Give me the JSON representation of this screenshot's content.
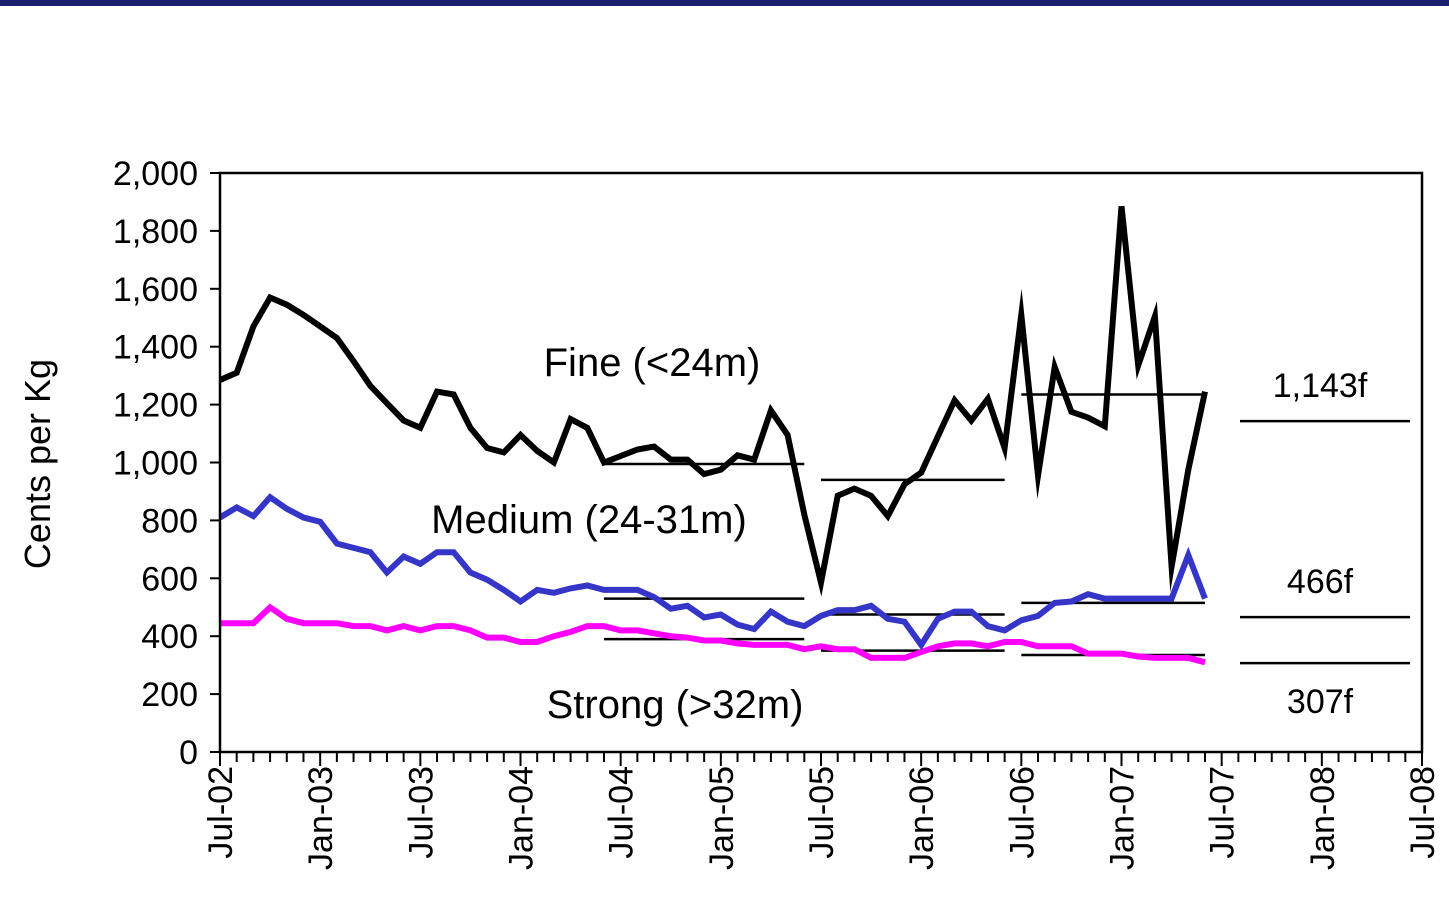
{
  "chart_data": {
    "type": "line",
    "ylabel": "Cents per Kg",
    "ylim": [
      0,
      2000
    ],
    "yticks": [
      "0",
      "200",
      "400",
      "600",
      "800",
      "1,000",
      "1,200",
      "1,400",
      "1,600",
      "1,800",
      "2,000"
    ],
    "ytick_values": [
      0,
      200,
      400,
      600,
      800,
      1000,
      1200,
      1400,
      1600,
      1800,
      2000
    ],
    "xlim": [
      "2002-07",
      "2008-07"
    ],
    "xticks": [
      "Jul-02",
      "Jan-03",
      "Jul-03",
      "Jan-04",
      "Jul-04",
      "Jan-05",
      "Jul-05",
      "Jan-06",
      "Jul-06",
      "Jan-07",
      "Jul-07",
      "Jan-08",
      "Jul-08"
    ],
    "xtick_values": [
      "2002-07",
      "2003-01",
      "2003-07",
      "2004-01",
      "2004-07",
      "2005-01",
      "2005-07",
      "2006-01",
      "2006-07",
      "2007-01",
      "2007-07",
      "2008-01",
      "2008-07"
    ],
    "grid": false,
    "series": [
      {
        "name": "Fine (<24m)",
        "color": "#000000",
        "x": [
          "2002-07",
          "2002-08",
          "2002-09",
          "2002-10",
          "2002-11",
          "2002-12",
          "2003-01",
          "2003-02",
          "2003-03",
          "2003-04",
          "2003-05",
          "2003-06",
          "2003-07",
          "2003-08",
          "2003-09",
          "2003-10",
          "2003-11",
          "2003-12",
          "2004-01",
          "2004-02",
          "2004-03",
          "2004-04",
          "2004-05",
          "2004-06",
          "2004-08",
          "2004-09",
          "2004-10",
          "2004-11",
          "2004-12",
          "2005-01",
          "2005-02",
          "2005-03",
          "2005-04",
          "2005-05",
          "2005-06",
          "2005-07",
          "2005-08",
          "2005-09",
          "2005-10",
          "2005-11",
          "2005-12",
          "2006-01",
          "2006-02",
          "2006-03",
          "2006-04",
          "2006-05",
          "2006-06",
          "2006-07",
          "2006-08",
          "2006-09",
          "2006-10",
          "2006-11",
          "2006-12",
          "2007-01",
          "2007-02",
          "2007-03",
          "2007-04",
          "2007-05",
          "2007-06"
        ],
        "y": [
          1285,
          1310,
          1470,
          1570,
          1545,
          1510,
          1470,
          1430,
          1350,
          1265,
          1205,
          1145,
          1120,
          1245,
          1235,
          1120,
          1050,
          1035,
          1095,
          1040,
          1000,
          1150,
          1120,
          1000,
          1045,
          1055,
          1010,
          1010,
          960,
          975,
          1025,
          1010,
          1180,
          1095,
          820,
          585,
          885,
          910,
          885,
          815,
          925,
          965,
          1090,
          1215,
          1145,
          1220,
          1050,
          1510,
          955,
          1330,
          1175,
          1155,
          1125,
          1885,
          1335,
          1505,
          640,
          975,
          1245
        ]
      },
      {
        "name": "Medium (24-31m)",
        "color": "#3535c8",
        "x": [
          "2002-07",
          "2002-08",
          "2002-09",
          "2002-10",
          "2002-11",
          "2002-12",
          "2003-01",
          "2003-02",
          "2003-03",
          "2003-04",
          "2003-05",
          "2003-06",
          "2003-07",
          "2003-08",
          "2003-09",
          "2003-10",
          "2003-11",
          "2003-12",
          "2004-01",
          "2004-02",
          "2004-03",
          "2004-04",
          "2004-05",
          "2004-06",
          "2004-07",
          "2004-08",
          "2004-09",
          "2004-10",
          "2004-11",
          "2004-12",
          "2005-01",
          "2005-02",
          "2005-03",
          "2005-04",
          "2005-05",
          "2005-06",
          "2005-07",
          "2005-08",
          "2005-09",
          "2005-10",
          "2005-11",
          "2005-12",
          "2006-01",
          "2006-02",
          "2006-03",
          "2006-04",
          "2006-05",
          "2006-06",
          "2006-07",
          "2006-08",
          "2006-09",
          "2006-10",
          "2006-11",
          "2006-12",
          "2007-01",
          "2007-02",
          "2007-03",
          "2007-04",
          "2007-05",
          "2007-06"
        ],
        "y": [
          810,
          845,
          815,
          880,
          840,
          810,
          795,
          720,
          705,
          690,
          620,
          675,
          650,
          690,
          690,
          620,
          595,
          560,
          520,
          560,
          550,
          565,
          575,
          560,
          560,
          560,
          535,
          495,
          505,
          465,
          475,
          440,
          425,
          485,
          450,
          435,
          470,
          490,
          490,
          505,
          460,
          450,
          370,
          460,
          485,
          485,
          435,
          420,
          455,
          470,
          515,
          520,
          545,
          530,
          530,
          530,
          530,
          530,
          680,
          530
        ]
      },
      {
        "name": "Strong (>32m)",
        "color": "#ff00ff",
        "x": [
          "2002-07",
          "2002-08",
          "2002-09",
          "2002-10",
          "2002-11",
          "2002-12",
          "2003-01",
          "2003-02",
          "2003-03",
          "2003-04",
          "2003-05",
          "2003-06",
          "2003-07",
          "2003-08",
          "2003-09",
          "2003-10",
          "2003-11",
          "2003-12",
          "2004-01",
          "2004-02",
          "2004-03",
          "2004-04",
          "2004-05",
          "2004-06",
          "2004-07",
          "2004-08",
          "2004-09",
          "2004-10",
          "2004-11",
          "2004-12",
          "2005-01",
          "2005-02",
          "2005-03",
          "2005-04",
          "2005-05",
          "2005-06",
          "2005-07",
          "2005-08",
          "2005-09",
          "2005-10",
          "2005-11",
          "2005-12",
          "2006-01",
          "2006-02",
          "2006-03",
          "2006-04",
          "2006-05",
          "2006-06",
          "2006-07",
          "2006-08",
          "2006-09",
          "2006-10",
          "2006-11",
          "2006-12",
          "2007-01",
          "2007-02",
          "2007-03",
          "2007-04",
          "2007-05",
          "2007-06"
        ],
        "y": [
          445,
          445,
          445,
          500,
          460,
          445,
          445,
          445,
          435,
          435,
          420,
          435,
          420,
          435,
          435,
          420,
          395,
          395,
          380,
          380,
          400,
          415,
          435,
          435,
          420,
          420,
          410,
          400,
          395,
          385,
          385,
          375,
          370,
          370,
          370,
          355,
          365,
          355,
          355,
          325,
          325,
          325,
          345,
          365,
          375,
          375,
          365,
          380,
          380,
          365,
          365,
          365,
          340,
          340,
          340,
          330,
          325,
          325,
          325,
          310
        ]
      }
    ],
    "average_lines": [
      {
        "series": "Fine (<24m)",
        "x": [
          "2004-06",
          "2005-06"
        ],
        "y": 995
      },
      {
        "series": "Fine (<24m)",
        "x": [
          "2005-07",
          "2006-06"
        ],
        "y": 940
      },
      {
        "series": "Fine (<24m)",
        "x": [
          "2006-07",
          "2007-06"
        ],
        "y": 1235
      },
      {
        "series": "Medium (24-31m)",
        "x": [
          "2004-06",
          "2005-06"
        ],
        "y": 530
      },
      {
        "series": "Medium (24-31m)",
        "x": [
          "2005-07",
          "2006-06"
        ],
        "y": 475
      },
      {
        "series": "Medium (24-31m)",
        "x": [
          "2006-07",
          "2007-06"
        ],
        "y": 515
      },
      {
        "series": "Strong (>32m)",
        "x": [
          "2004-06",
          "2005-06"
        ],
        "y": 390
      },
      {
        "series": "Strong (>32m)",
        "x": [
          "2005-07",
          "2006-06"
        ],
        "y": 350
      },
      {
        "series": "Strong (>32m)",
        "x": [
          "2006-07",
          "2007-06"
        ],
        "y": 335
      }
    ],
    "forecasts": [
      {
        "series": "Fine (<24m)",
        "label": "1,143f",
        "value": 1143
      },
      {
        "series": "Medium (24-31m)",
        "label": "466f",
        "value": 466
      },
      {
        "series": "Strong (>32m)",
        "label": "307f",
        "value": 307
      }
    ],
    "annotations": [
      {
        "text": "Fine (<24m)",
        "series": "Fine (<24m)"
      },
      {
        "text": "Medium (24-31m)",
        "series": "Medium (24-31m)"
      },
      {
        "text": "Strong (>32m)",
        "series": "Strong (>32m)"
      }
    ]
  }
}
